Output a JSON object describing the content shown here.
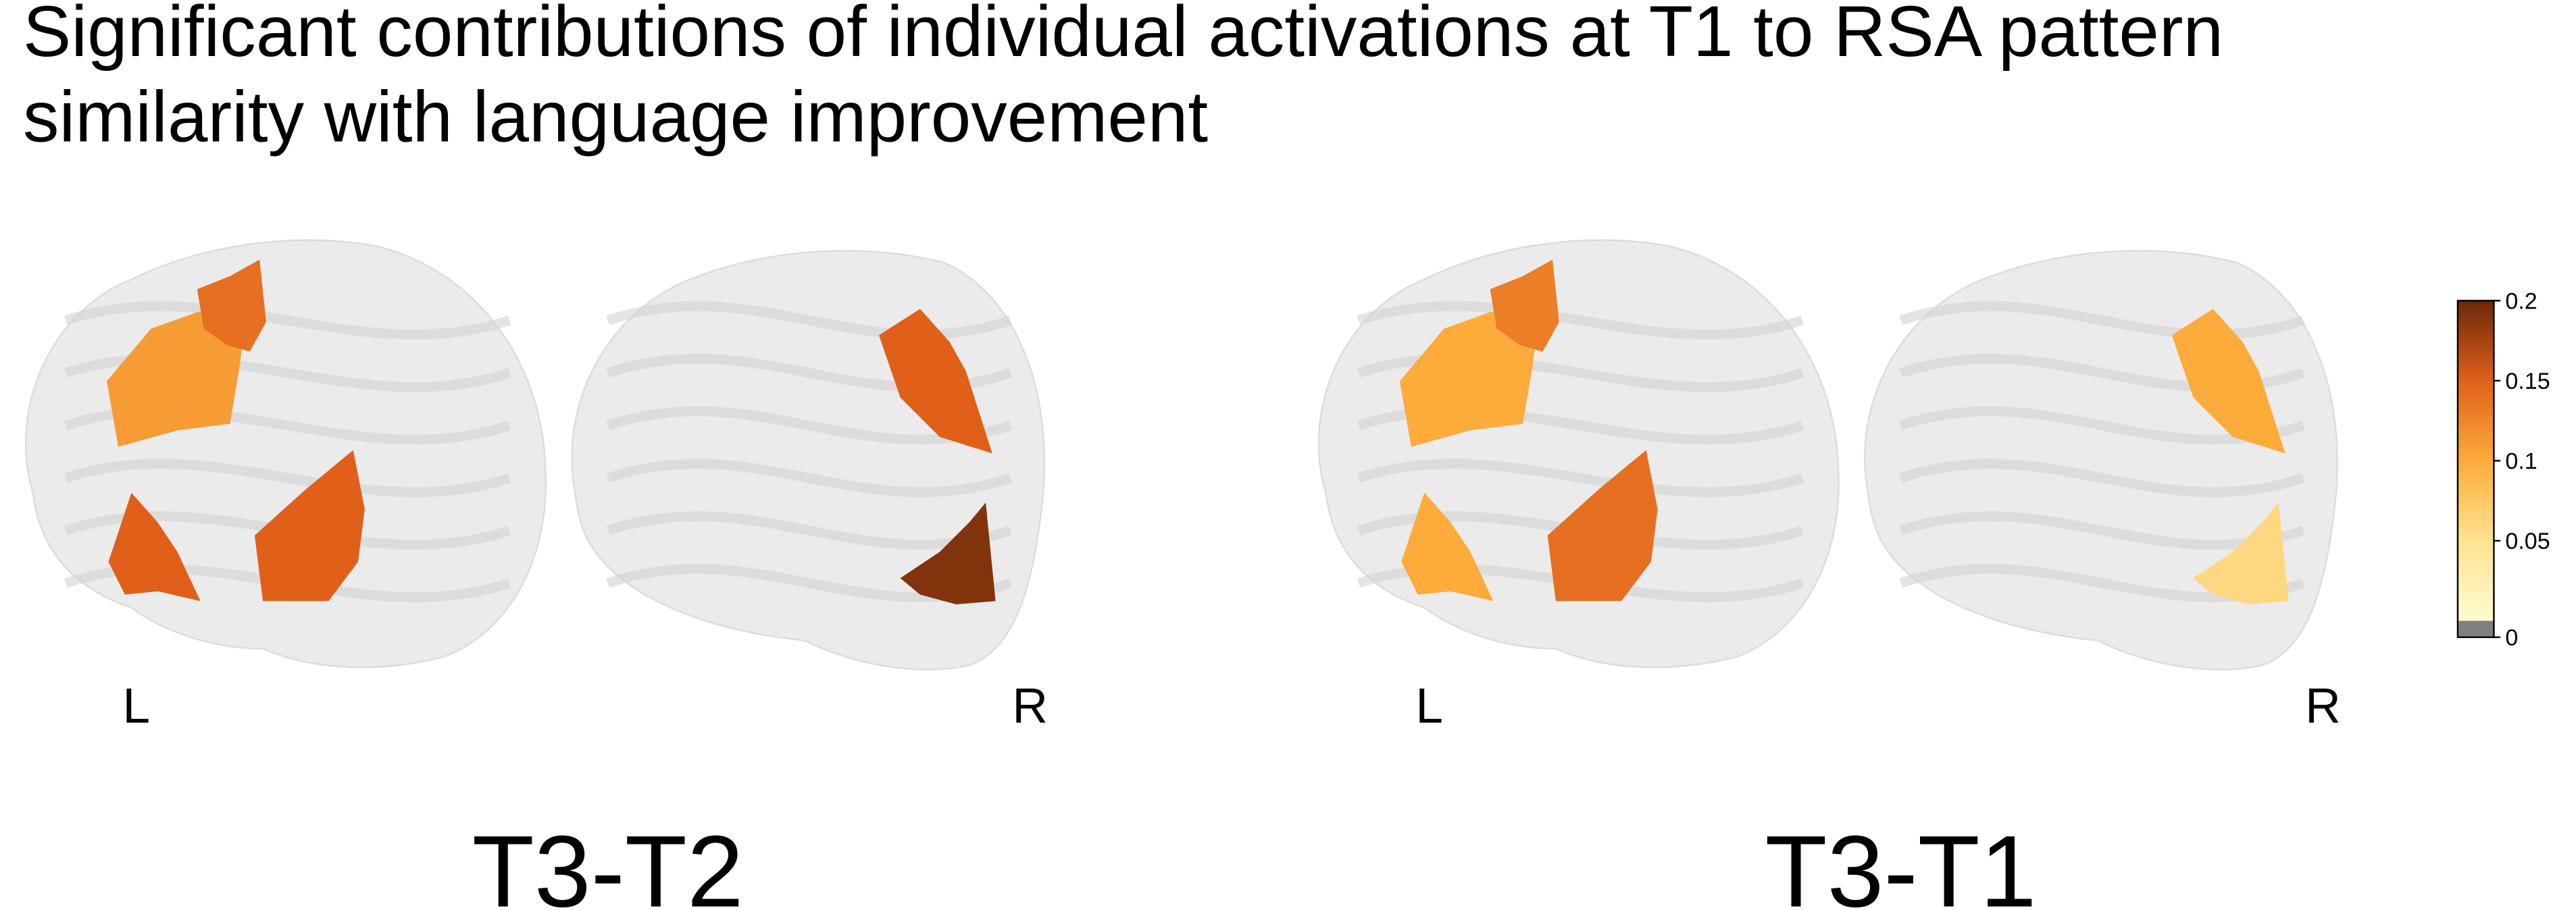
{
  "title": [
    "Significant contributions of individual activations at T1 to RSA pattern",
    "similarity with language improvement"
  ],
  "panels": [
    {
      "label": "T3-T2",
      "hemispheres": [
        "L",
        "R"
      ],
      "left_regions": [
        0.11,
        0.14,
        0.15,
        0.15
      ],
      "right_regions": [
        0.15,
        0.19
      ]
    },
    {
      "label": "T3-T1",
      "hemispheres": [
        "L",
        "R"
      ],
      "left_regions": [
        0.1,
        0.13,
        0.1,
        0.14
      ],
      "right_regions": [
        0.1,
        0.06
      ]
    }
  ],
  "colorbar": {
    "lim": [
      0,
      0.2
    ],
    "ticks": [
      0,
      0.05,
      0.1,
      0.15,
      0.2
    ]
  }
}
